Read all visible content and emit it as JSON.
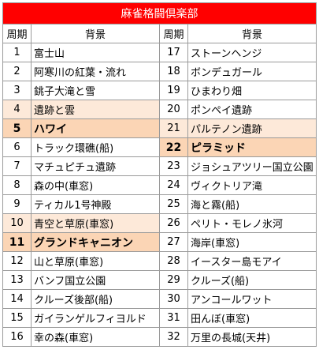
{
  "title": "麻雀格闘倶楽部",
  "headers": {
    "period": "周期",
    "background": "背景"
  },
  "left": [
    {
      "n": "1",
      "bg": "富士山",
      "hl": ""
    },
    {
      "n": "2",
      "bg": "阿寒川の紅葉・流れ",
      "hl": ""
    },
    {
      "n": "3",
      "bg": "銚子大滝と雪",
      "hl": ""
    },
    {
      "n": "4",
      "bg": "遺跡と雲",
      "hl": "light"
    },
    {
      "n": "5",
      "bg": "ハワイ",
      "hl": "strong"
    },
    {
      "n": "6",
      "bg": "トラック環礁(船)",
      "hl": ""
    },
    {
      "n": "7",
      "bg": "マチュピチュ遺跡",
      "hl": ""
    },
    {
      "n": "8",
      "bg": "森の中(車窓)",
      "hl": ""
    },
    {
      "n": "9",
      "bg": "ティカル1号神殿",
      "hl": ""
    },
    {
      "n": "10",
      "bg": "青空と草原(車窓)",
      "hl": "light"
    },
    {
      "n": "11",
      "bg": "グランドキャニオン",
      "hl": "strong"
    },
    {
      "n": "12",
      "bg": "山と草原(車窓)",
      "hl": ""
    },
    {
      "n": "13",
      "bg": "バンフ国立公園",
      "hl": ""
    },
    {
      "n": "14",
      "bg": "クルーズ後部(船)",
      "hl": ""
    },
    {
      "n": "15",
      "bg": "ガイランゲルフィヨルド",
      "hl": ""
    },
    {
      "n": "16",
      "bg": "幸の森(車窓)",
      "hl": ""
    }
  ],
  "right": [
    {
      "n": "17",
      "bg": "ストーンヘンジ",
      "hl": ""
    },
    {
      "n": "18",
      "bg": "ボンデュガール",
      "hl": ""
    },
    {
      "n": "19",
      "bg": "ひまわり畑",
      "hl": ""
    },
    {
      "n": "20",
      "bg": "ポンペイ遺跡",
      "hl": ""
    },
    {
      "n": "21",
      "bg": "パルテノン遺跡",
      "hl": "light"
    },
    {
      "n": "22",
      "bg": "ピラミッド",
      "hl": "strong"
    },
    {
      "n": "23",
      "bg": "ジョシュアツリー国立公園",
      "hl": ""
    },
    {
      "n": "24",
      "bg": "ヴィクトリア滝",
      "hl": ""
    },
    {
      "n": "25",
      "bg": "海と霧(船)",
      "hl": ""
    },
    {
      "n": "26",
      "bg": "ペリト・モレノ氷河",
      "hl": ""
    },
    {
      "n": "27",
      "bg": "海岸(車窓)",
      "hl": ""
    },
    {
      "n": "28",
      "bg": "イースター島モアイ",
      "hl": ""
    },
    {
      "n": "29",
      "bg": "クルーズ(船)",
      "hl": ""
    },
    {
      "n": "30",
      "bg": "アンコールワット",
      "hl": ""
    },
    {
      "n": "31",
      "bg": "田んぼ(車窓)",
      "hl": ""
    },
    {
      "n": "32",
      "bg": "万里の長城(天井)",
      "hl": ""
    }
  ]
}
